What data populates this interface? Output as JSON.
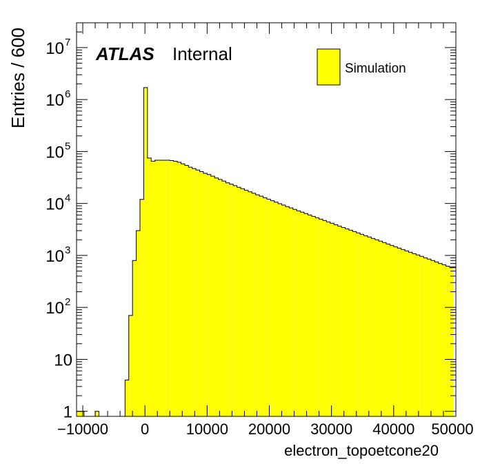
{
  "chart_data": {
    "type": "histogram",
    "title": "",
    "xlabel": "electron_topoetcone20",
    "ylabel": "Entries / 600",
    "log_y": true,
    "xlim": [
      -11000,
      50000
    ],
    "ylim": [
      0.8,
      30000000
    ],
    "x_ticks": [
      {
        "value": -10000,
        "label": "−10000"
      },
      {
        "value": 0,
        "label": "0"
      },
      {
        "value": 10000,
        "label": "10000"
      },
      {
        "value": 20000,
        "label": "20000"
      },
      {
        "value": 30000,
        "label": "30000"
      },
      {
        "value": 40000,
        "label": "40000"
      },
      {
        "value": 50000,
        "label": "50000"
      }
    ],
    "y_ticks": [
      {
        "value": 1,
        "base": "1",
        "exp": ""
      },
      {
        "value": 10,
        "base": "10",
        "exp": ""
      },
      {
        "value": 100,
        "base": "10",
        "exp": "2"
      },
      {
        "value": 1000,
        "base": "10",
        "exp": "3"
      },
      {
        "value": 10000,
        "base": "10",
        "exp": "4"
      },
      {
        "value": 100000,
        "base": "10",
        "exp": "5"
      },
      {
        "value": 1000000,
        "base": "10",
        "exp": "6"
      },
      {
        "value": 10000000,
        "base": "10",
        "exp": "7"
      }
    ],
    "atlas_label": "ATLAS",
    "atlas_status": "Internal",
    "legend_position": "top-right",
    "series": [
      {
        "name": "Simulation",
        "color": "#ffff00",
        "line_color": "#000000",
        "bin_width": 600,
        "bin_start": -11000,
        "values": [
          1,
          1,
          0,
          0,
          0,
          1,
          0,
          0,
          0,
          0,
          0,
          0,
          0,
          4,
          70,
          800,
          3000,
          12000,
          1700000,
          75000,
          65000,
          68000,
          68000,
          68000,
          68000,
          67000,
          65000,
          62000,
          58000,
          54000,
          50000,
          47000,
          44000,
          41000,
          38000,
          36000,
          33500,
          31000,
          29000,
          27000,
          25000,
          23500,
          22000,
          20500,
          19200,
          18000,
          16800,
          15700,
          14700,
          13800,
          12900,
          12100,
          11300,
          10600,
          9900,
          9300,
          8700,
          8200,
          7700,
          7200,
          6800,
          6400,
          6000,
          5650,
          5300,
          5000,
          4700,
          4420,
          4150,
          3900,
          3670,
          3450,
          3250,
          3060,
          2880,
          2710,
          2550,
          2400,
          2260,
          2120,
          2000,
          1880,
          1770,
          1660,
          1560,
          1470,
          1380,
          1300,
          1220,
          1150,
          1080,
          1020,
          960,
          900,
          850,
          800,
          750,
          700,
          660,
          620,
          580
        ]
      }
    ]
  }
}
